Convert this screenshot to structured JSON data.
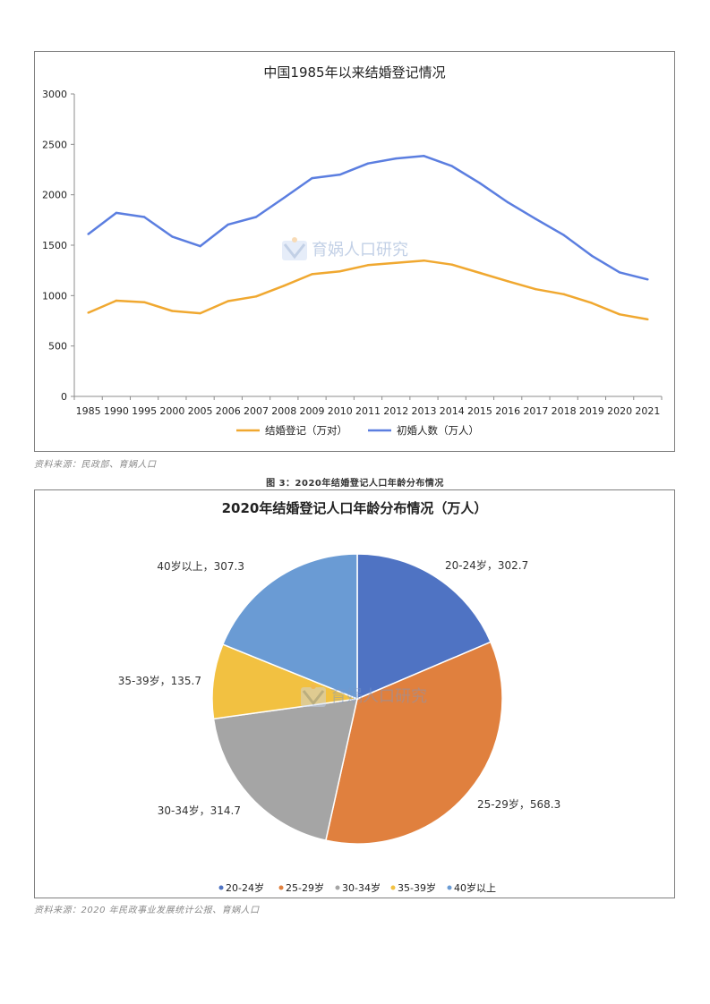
{
  "chart_data": [
    {
      "type": "line",
      "title": "中国1985年以来结婚登记情况",
      "x": [
        "1985",
        "1990",
        "1995",
        "2000",
        "2005",
        "2006",
        "2007",
        "2008",
        "2009",
        "2010",
        "2011",
        "2012",
        "2013",
        "2014",
        "2015",
        "2016",
        "2017",
        "2018",
        "2019",
        "2020",
        "2021"
      ],
      "series": [
        {
          "name": "结婚登记（万对）",
          "color": "#f0a830",
          "values": [
            830,
            950,
            935,
            848,
            825,
            945,
            991,
            1098,
            1212,
            1241,
            1302,
            1324,
            1347,
            1307,
            1225,
            1142,
            1063,
            1014,
            927,
            814,
            764
          ]
        },
        {
          "name": "初婚人数（万人）",
          "color": "#5b7ee0",
          "values": [
            1610,
            1820,
            1780,
            1585,
            1490,
            1705,
            1780,
            1970,
            2165,
            2200,
            2310,
            2360,
            2385,
            2285,
            2115,
            1925,
            1760,
            1600,
            1395,
            1230,
            1160
          ]
        }
      ],
      "ylim": [
        0,
        3000
      ],
      "yticks": [
        "0",
        "500",
        "1000",
        "1500",
        "2000",
        "2500",
        "3000"
      ],
      "grid": false,
      "legend": "bottom"
    },
    {
      "type": "pie",
      "title": "2020年结婚登记人口年龄分布情况（万人）",
      "categories": [
        "20-24岁",
        "25-29岁",
        "30-34岁",
        "35-39岁",
        "40岁以上"
      ],
      "values": [
        302.7,
        568.3,
        314.7,
        135.7,
        307.3
      ],
      "data_labels": [
        "20-24岁，302.7",
        "25-29岁，568.3",
        "30-34岁，314.7",
        "35-39岁，135.7",
        "40岁以上，307.3"
      ],
      "colors": [
        "#4f73c3",
        "#e0803e",
        "#a5a5a5",
        "#f2c141",
        "#6a9bd4"
      ],
      "legend": "bottom"
    }
  ],
  "figure_caption": "图 3：2020年结婚登记人口年龄分布情况",
  "source1": "资料来源：民政部、育娲人口",
  "source2": "资料来源：2020 年民政事业发展统计公报、育娲人口",
  "watermark": "育娲人口研究"
}
